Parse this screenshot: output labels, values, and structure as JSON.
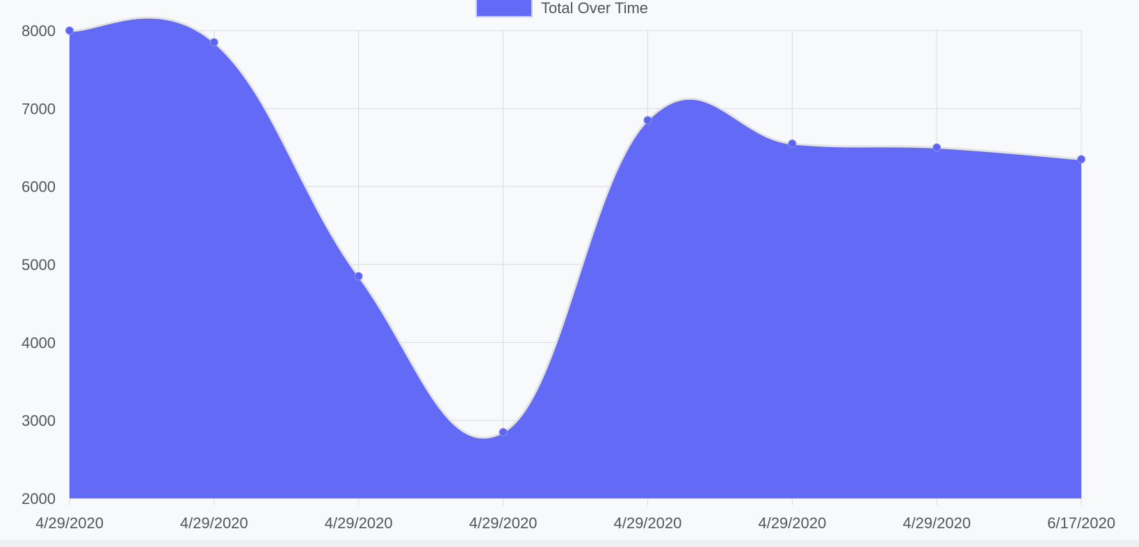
{
  "chart_data": {
    "type": "area",
    "categories": [
      "4/29/2020",
      "4/29/2020",
      "4/29/2020",
      "4/29/2020",
      "4/29/2020",
      "4/29/2020",
      "4/29/2020",
      "6/17/2020"
    ],
    "series": [
      {
        "name": "Total Over Time",
        "values": [
          8000,
          7850,
          4850,
          2850,
          6850,
          6550,
          6500,
          6350
        ]
      }
    ],
    "yticks": [
      2000,
      3000,
      4000,
      5000,
      6000,
      7000,
      8000
    ],
    "ylim": [
      2000,
      8000
    ],
    "title": "",
    "xlabel": "",
    "ylabel": "",
    "grid": true,
    "legend_position": "top",
    "colors": {
      "fill": "#636af5",
      "line": "#e3e3e6",
      "point": "#5c63ee",
      "grid": "#d9dade",
      "tick_text": "#555555",
      "background": "#f8f9fb"
    }
  }
}
